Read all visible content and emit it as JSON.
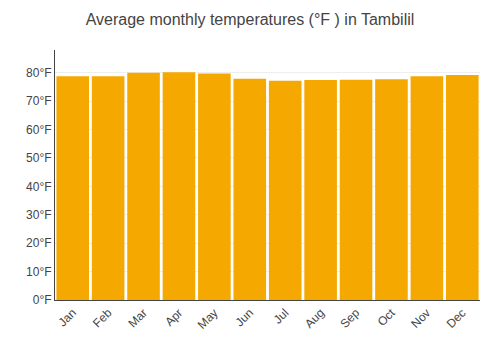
{
  "chart_data": {
    "type": "bar",
    "title": "Average monthly temperatures (°F ) in Tambilil",
    "categories": [
      "Jan",
      "Feb",
      "Mar",
      "Apr",
      "May",
      "Jun",
      "Jul",
      "Aug",
      "Sep",
      "Oct",
      "Nov",
      "Dec"
    ],
    "values": [
      78.8,
      78.8,
      80.0,
      80.2,
      79.7,
      77.9,
      77.2,
      77.4,
      77.5,
      77.7,
      78.8,
      79.2
    ],
    "color": "#F5A800",
    "ylim": [
      0,
      88
    ],
    "yticks": [
      {
        "value": 0,
        "label": "0°F"
      },
      {
        "value": 10,
        "label": "10°F"
      },
      {
        "value": 20,
        "label": "20°F"
      },
      {
        "value": 30,
        "label": "30°F"
      },
      {
        "value": 40,
        "label": "40°F"
      },
      {
        "value": 50,
        "label": "50°F"
      },
      {
        "value": 60,
        "label": "60°F"
      },
      {
        "value": 70,
        "label": "70°F"
      },
      {
        "value": 80,
        "label": "80°F"
      }
    ],
    "grid": true
  }
}
